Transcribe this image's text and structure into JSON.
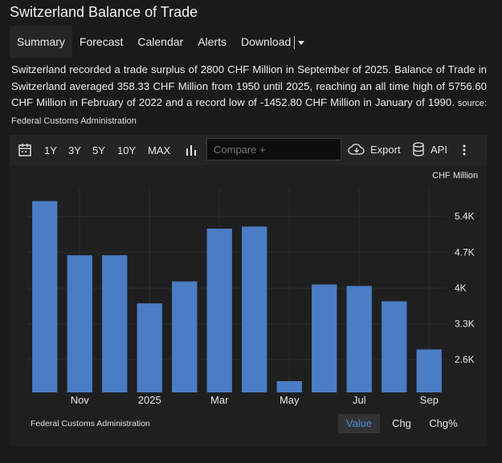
{
  "page": {
    "title": "Switzerland Balance of Trade",
    "tabs": [
      "Summary",
      "Forecast",
      "Calendar",
      "Alerts",
      "Download"
    ],
    "description": "Switzerland recorded a trade surplus of 2800 CHF Million in September of 2025. Balance of Trade in Switzerland averaged 358.33 CHF Million from 1950 until 2025, reaching an all time high of 5756.60 CHF Million in February of 2022 and a record low of -1452.80 CHF Million in January of 1990.",
    "source": "source: Federal Customs Administration"
  },
  "toolbar": {
    "ranges": [
      "1Y",
      "3Y",
      "5Y",
      "10Y",
      "MAX"
    ],
    "compare_placeholder": "Compare +",
    "export_label": "Export",
    "api_label": "API"
  },
  "chart_footer": {
    "source": "Federal Customs Administration",
    "views": [
      "Value",
      "Chg",
      "Chg%"
    ],
    "active_view": "Value"
  },
  "colors": {
    "bar": "#4a7dc4",
    "accent": "#4a90d9"
  },
  "chart_data": {
    "type": "bar",
    "unit_label": "CHF Million",
    "categories": [
      "Oct 2024",
      "Nov 2024",
      "Dec 2024",
      "Jan 2025",
      "Feb 2025",
      "Mar 2025",
      "Apr 2025",
      "May 2025",
      "Jun 2025",
      "Jul 2025",
      "Aug 2025",
      "Sep 2025"
    ],
    "x_tick_labels": [
      "Nov",
      "2025",
      "Mar",
      "May",
      "Jul",
      "Sep"
    ],
    "x_tick_indices": [
      1,
      3,
      5,
      7,
      9,
      11
    ],
    "values": [
      5700,
      4640,
      4640,
      3700,
      4130,
      5160,
      5200,
      2180,
      4070,
      4040,
      3740,
      2800
    ],
    "y_ticks": [
      2600,
      3300,
      4000,
      4700,
      5400
    ],
    "y_tick_labels": [
      "2.6K",
      "3.3K",
      "4K",
      "4.7K",
      "5.4K"
    ],
    "ylim": [
      1960,
      5960
    ],
    "grid": true
  }
}
